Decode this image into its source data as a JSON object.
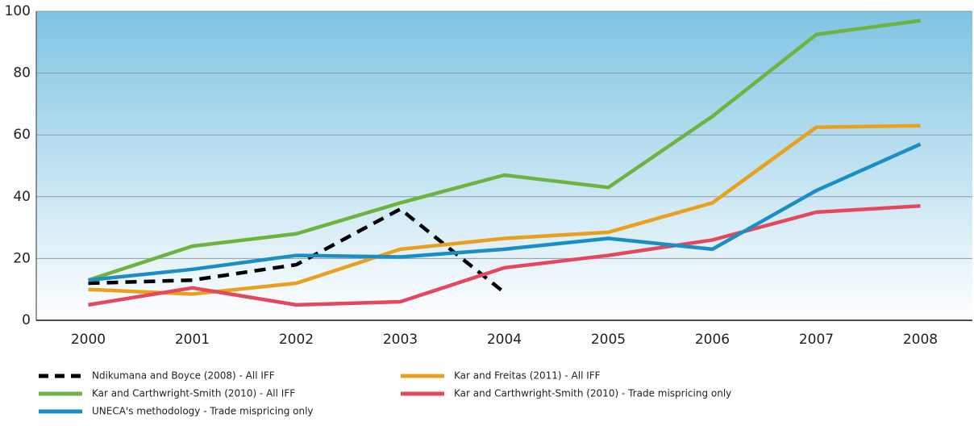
{
  "chart_data": {
    "type": "line",
    "categories": [
      "2000",
      "2001",
      "2002",
      "2003",
      "2004",
      "2005",
      "2006",
      "2007",
      "2008"
    ],
    "series": [
      {
        "name": "Ndikumana and Boyce (2008) - All IFF",
        "color": "#000000",
        "dashed": true,
        "values": [
          12,
          13,
          18,
          36,
          9,
          null,
          null,
          null,
          null
        ]
      },
      {
        "name": "Kar and Freitas (2011) - All IFF",
        "color": "#e8a01e",
        "values": [
          10,
          8.5,
          12,
          23,
          26.5,
          28.5,
          38,
          62.5,
          63
        ]
      },
      {
        "name": "Kar and Carthwright-Smith (2010) - All IFF",
        "color": "#6db33f",
        "values": [
          13,
          24,
          28,
          38,
          47,
          43,
          66,
          92.5,
          97
        ]
      },
      {
        "name": "Kar and Carthwright-Smith (2010) - Trade mispricing only",
        "color": "#e5475e",
        "values": [
          5,
          10.5,
          5,
          6,
          17,
          21,
          26,
          35,
          37
        ]
      },
      {
        "name": "UNECA's methodology - Trade mispricing only",
        "color": "#1b8fc4",
        "values": [
          13,
          16.5,
          21,
          20.5,
          23,
          26.5,
          23,
          42,
          57
        ]
      }
    ],
    "ylim": [
      0,
      100
    ],
    "yticks": [
      0,
      20,
      40,
      60,
      80,
      100
    ],
    "grid": true
  }
}
